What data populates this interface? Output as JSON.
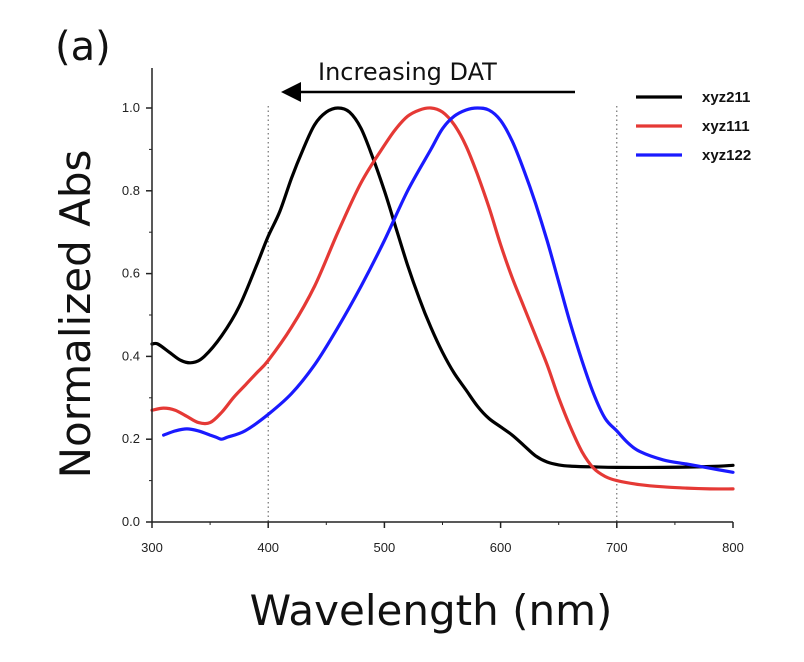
{
  "chart_data": {
    "type": "line",
    "panel_label": "(a)",
    "xlabel": "Wavelength (nm)",
    "ylabel": "Normalized Abs",
    "xlim": [
      300,
      800
    ],
    "ylim": [
      0.0,
      1.0
    ],
    "x_ticks": [
      "300",
      "400",
      "500",
      "600",
      "700",
      "800"
    ],
    "y_ticks": [
      "0.0",
      "0.2",
      "0.4",
      "0.6",
      "0.8",
      "1.0"
    ],
    "reference_lines_x": [
      400,
      700
    ],
    "legend_position": "top-right",
    "annotation": "Increasing DAT",
    "series": [
      {
        "name": "xyz211",
        "color": "#000000",
        "points": [
          [
            300,
            0.43
          ],
          [
            305,
            0.43
          ],
          [
            315,
            0.41
          ],
          [
            325,
            0.39
          ],
          [
            335,
            0.385
          ],
          [
            345,
            0.4
          ],
          [
            360,
            0.45
          ],
          [
            375,
            0.52
          ],
          [
            390,
            0.62
          ],
          [
            400,
            0.69
          ],
          [
            410,
            0.75
          ],
          [
            420,
            0.83
          ],
          [
            430,
            0.9
          ],
          [
            440,
            0.96
          ],
          [
            450,
            0.99
          ],
          [
            460,
            1.0
          ],
          [
            470,
            0.99
          ],
          [
            480,
            0.95
          ],
          [
            490,
            0.88
          ],
          [
            500,
            0.8
          ],
          [
            510,
            0.71
          ],
          [
            520,
            0.62
          ],
          [
            530,
            0.54
          ],
          [
            540,
            0.47
          ],
          [
            550,
            0.41
          ],
          [
            560,
            0.36
          ],
          [
            570,
            0.32
          ],
          [
            580,
            0.28
          ],
          [
            590,
            0.25
          ],
          [
            600,
            0.23
          ],
          [
            610,
            0.21
          ],
          [
            620,
            0.185
          ],
          [
            630,
            0.16
          ],
          [
            640,
            0.145
          ],
          [
            650,
            0.138
          ],
          [
            660,
            0.135
          ],
          [
            680,
            0.133
          ],
          [
            700,
            0.132
          ],
          [
            740,
            0.132
          ],
          [
            780,
            0.134
          ],
          [
            800,
            0.137
          ]
        ]
      },
      {
        "name": "xyz111",
        "color": "#e53935",
        "points": [
          [
            300,
            0.27
          ],
          [
            310,
            0.275
          ],
          [
            320,
            0.27
          ],
          [
            330,
            0.255
          ],
          [
            340,
            0.24
          ],
          [
            350,
            0.24
          ],
          [
            360,
            0.265
          ],
          [
            370,
            0.3
          ],
          [
            380,
            0.33
          ],
          [
            390,
            0.36
          ],
          [
            400,
            0.39
          ],
          [
            420,
            0.47
          ],
          [
            440,
            0.57
          ],
          [
            460,
            0.7
          ],
          [
            480,
            0.82
          ],
          [
            500,
            0.91
          ],
          [
            510,
            0.95
          ],
          [
            520,
            0.98
          ],
          [
            530,
            0.995
          ],
          [
            540,
            1.0
          ],
          [
            550,
            0.99
          ],
          [
            560,
            0.96
          ],
          [
            570,
            0.91
          ],
          [
            580,
            0.84
          ],
          [
            590,
            0.76
          ],
          [
            600,
            0.67
          ],
          [
            610,
            0.59
          ],
          [
            620,
            0.52
          ],
          [
            630,
            0.45
          ],
          [
            640,
            0.38
          ],
          [
            650,
            0.3
          ],
          [
            660,
            0.23
          ],
          [
            670,
            0.17
          ],
          [
            680,
            0.13
          ],
          [
            690,
            0.11
          ],
          [
            700,
            0.1
          ],
          [
            720,
            0.09
          ],
          [
            740,
            0.085
          ],
          [
            760,
            0.082
          ],
          [
            780,
            0.08
          ],
          [
            800,
            0.08
          ]
        ]
      },
      {
        "name": "xyz122",
        "color": "#1a1aff",
        "points": [
          [
            310,
            0.21
          ],
          [
            320,
            0.22
          ],
          [
            330,
            0.225
          ],
          [
            340,
            0.22
          ],
          [
            350,
            0.21
          ],
          [
            355,
            0.205
          ],
          [
            360,
            0.2
          ],
          [
            365,
            0.205
          ],
          [
            380,
            0.22
          ],
          [
            400,
            0.26
          ],
          [
            420,
            0.31
          ],
          [
            440,
            0.38
          ],
          [
            460,
            0.47
          ],
          [
            480,
            0.57
          ],
          [
            500,
            0.68
          ],
          [
            520,
            0.8
          ],
          [
            540,
            0.9
          ],
          [
            550,
            0.95
          ],
          [
            560,
            0.98
          ],
          [
            570,
            0.995
          ],
          [
            580,
            1.0
          ],
          [
            590,
            0.995
          ],
          [
            600,
            0.97
          ],
          [
            610,
            0.92
          ],
          [
            620,
            0.85
          ],
          [
            630,
            0.77
          ],
          [
            640,
            0.68
          ],
          [
            650,
            0.58
          ],
          [
            660,
            0.48
          ],
          [
            670,
            0.39
          ],
          [
            680,
            0.31
          ],
          [
            690,
            0.25
          ],
          [
            700,
            0.22
          ],
          [
            710,
            0.19
          ],
          [
            720,
            0.17
          ],
          [
            740,
            0.15
          ],
          [
            760,
            0.14
          ],
          [
            780,
            0.13
          ],
          [
            800,
            0.12
          ]
        ]
      }
    ]
  }
}
